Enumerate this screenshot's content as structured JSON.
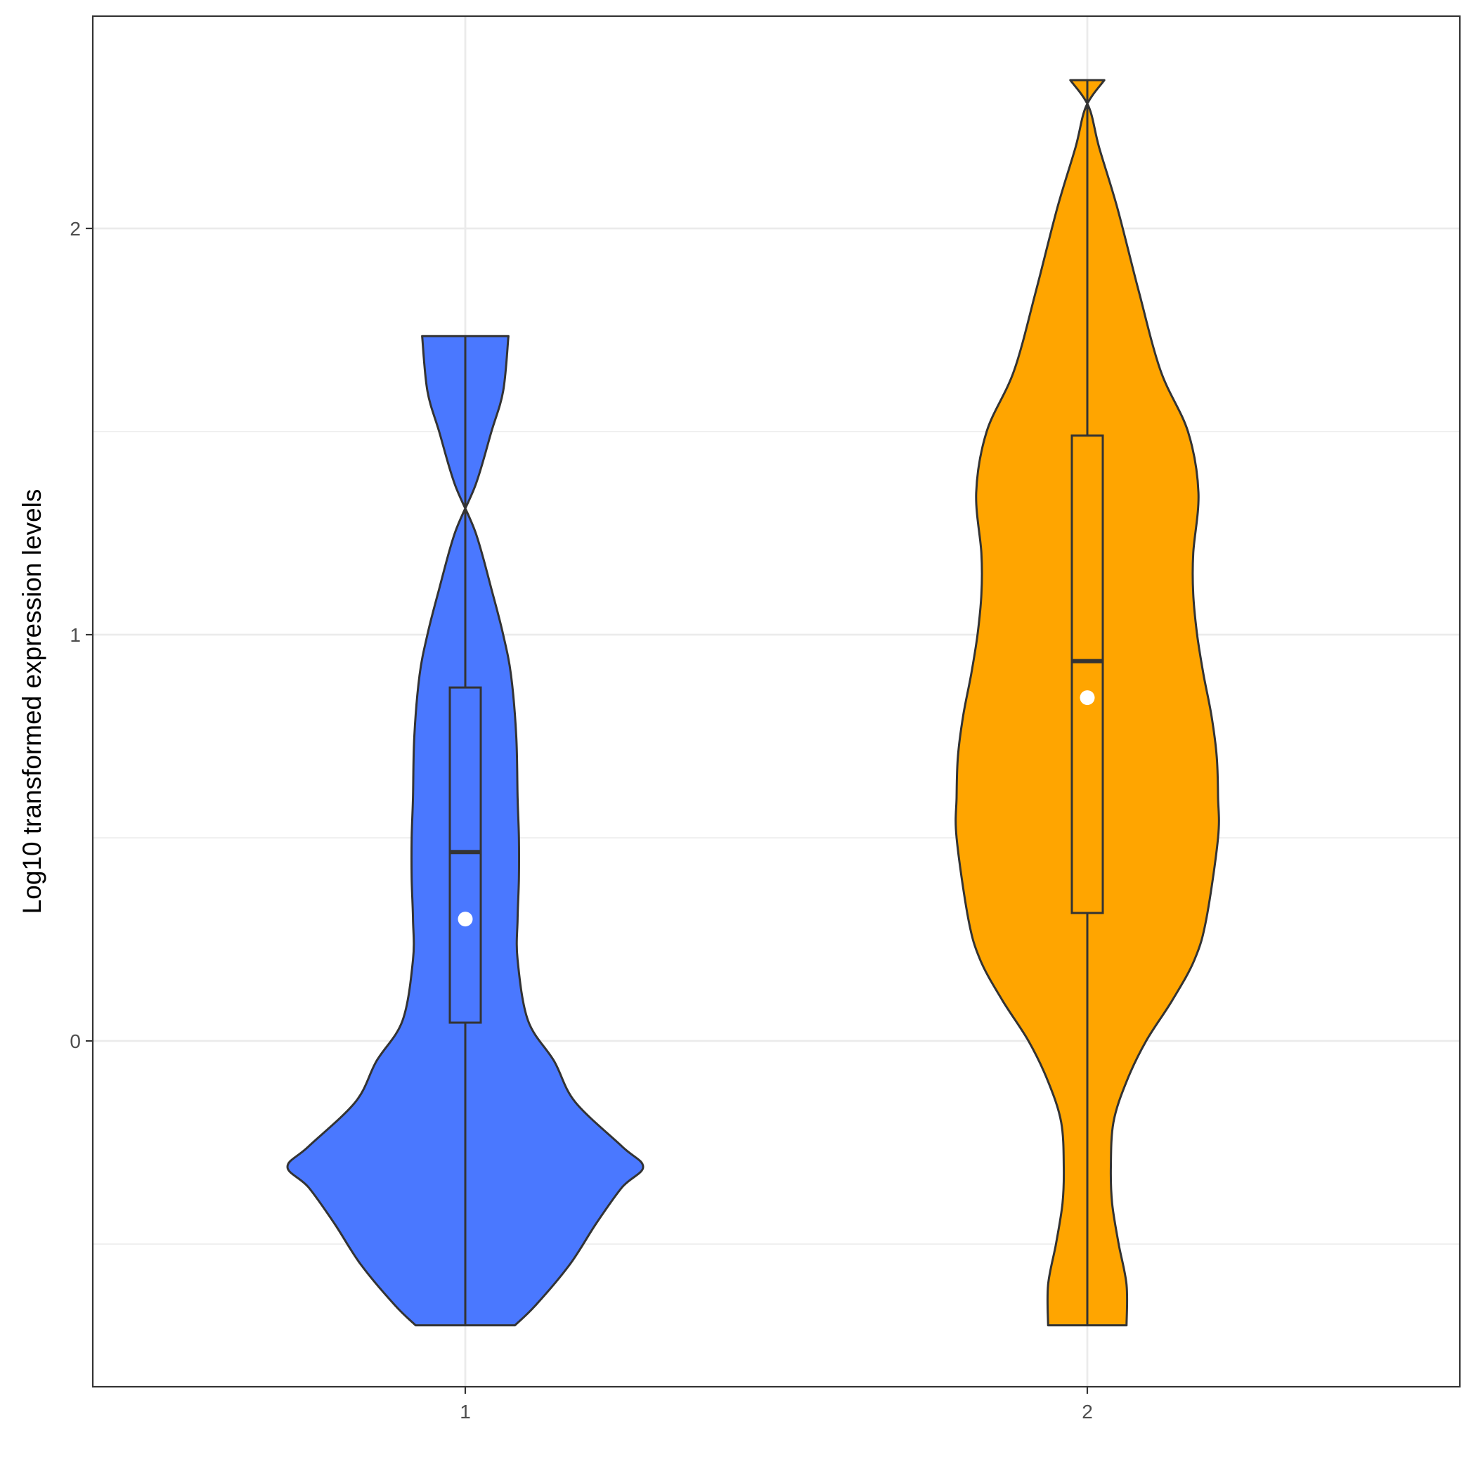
{
  "chart_data": {
    "type": "violin",
    "title": "",
    "xlabel": "",
    "ylabel": "Log10 transformed expression levels",
    "categories": [
      "1",
      "2"
    ],
    "y_ticks": [
      "0",
      "1",
      "2"
    ],
    "ylim": [
      -0.85,
      2.52
    ],
    "grid": true,
    "legend": "none",
    "colors": {
      "background": "#ffffff",
      "grid": "#ebebeb",
      "outline": "#333333",
      "mean_point": "#ffffff"
    },
    "series": [
      {
        "category": "1",
        "fill": "#4a78ff",
        "min": -0.7,
        "max": 1.735,
        "box": {
          "q1": 0.045,
          "median": 0.465,
          "q3": 0.87
        },
        "mean": 0.3,
        "density": [
          [
            -0.7,
            0.19
          ],
          [
            -0.65,
            0.27
          ],
          [
            -0.55,
            0.4
          ],
          [
            -0.45,
            0.5
          ],
          [
            -0.36,
            0.6
          ],
          [
            -0.31,
            0.68
          ],
          [
            -0.26,
            0.6
          ],
          [
            -0.15,
            0.42
          ],
          [
            -0.05,
            0.34
          ],
          [
            0.05,
            0.24
          ],
          [
            0.2,
            0.2
          ],
          [
            0.3,
            0.2
          ],
          [
            0.4,
            0.205
          ],
          [
            0.5,
            0.205
          ],
          [
            0.6,
            0.2
          ],
          [
            0.75,
            0.195
          ],
          [
            0.9,
            0.175
          ],
          [
            1.0,
            0.145
          ],
          [
            1.1,
            0.105
          ],
          [
            1.25,
            0.04
          ],
          [
            1.37,
            -0.04
          ],
          [
            1.5,
            -0.1
          ],
          [
            1.6,
            -0.145
          ],
          [
            1.735,
            -0.165
          ]
        ]
      },
      {
        "category": "2",
        "fill": "#ffa500",
        "min": -0.7,
        "max": 2.365,
        "box": {
          "q1": 0.315,
          "median": 0.935,
          "q3": 1.49
        },
        "mean": 0.845,
        "density": [
          [
            -0.7,
            0.15
          ],
          [
            -0.6,
            0.15
          ],
          [
            -0.5,
            0.12
          ],
          [
            -0.4,
            0.095
          ],
          [
            -0.31,
            0.09
          ],
          [
            -0.2,
            0.1
          ],
          [
            -0.1,
            0.15
          ],
          [
            0.0,
            0.225
          ],
          [
            0.1,
            0.325
          ],
          [
            0.2,
            0.41
          ],
          [
            0.3,
            0.455
          ],
          [
            0.5,
            0.5
          ],
          [
            0.6,
            0.5
          ],
          [
            0.7,
            0.495
          ],
          [
            0.8,
            0.475
          ],
          [
            0.9,
            0.445
          ],
          [
            1.0,
            0.42
          ],
          [
            1.1,
            0.405
          ],
          [
            1.2,
            0.405
          ],
          [
            1.35,
            0.425
          ],
          [
            1.5,
            0.385
          ],
          [
            1.65,
            0.28
          ],
          [
            1.85,
            0.195
          ],
          [
            2.05,
            0.115
          ],
          [
            2.2,
            0.045
          ],
          [
            2.3,
            0.005
          ],
          [
            2.365,
            -0.065
          ]
        ]
      }
    ]
  }
}
